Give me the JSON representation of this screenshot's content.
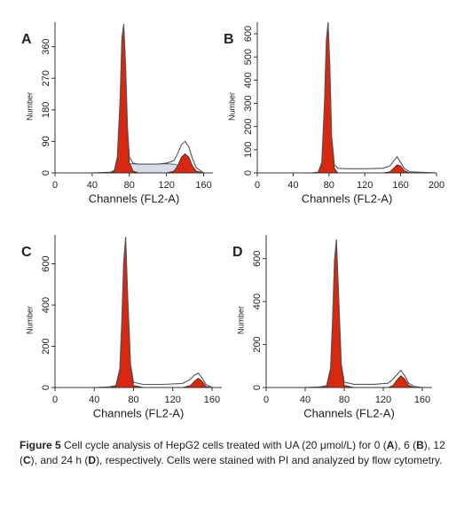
{
  "chart_data": [
    {
      "type": "area",
      "panel": "A",
      "xlabel": "Channels (FL2-A)",
      "ylabel": "Number",
      "xlim": [
        0,
        170
      ],
      "ylim": [
        0,
        430
      ],
      "xticks": [
        0,
        40,
        80,
        120,
        160
      ],
      "yticks": [
        0,
        90,
        180,
        270,
        360
      ],
      "x": [
        0,
        40,
        60,
        64,
        67,
        70,
        72,
        74,
        76,
        78,
        80,
        84,
        90,
        100,
        110,
        120,
        128,
        132,
        136,
        140,
        144,
        148,
        152,
        160
      ],
      "series": [
        {
          "style": "area",
          "color": "#d9dce8",
          "values": [
            0,
            0,
            0,
            0,
            5,
            10,
            15,
            20,
            22,
            24,
            25,
            26,
            25,
            25,
            25,
            26,
            25,
            22,
            18,
            15,
            10,
            5,
            0,
            0
          ]
        },
        {
          "style": "area",
          "color": "#d8280f",
          "values": [
            0,
            0,
            0,
            5,
            40,
            200,
            380,
            420,
            300,
            120,
            30,
            5,
            0,
            0,
            0,
            0,
            5,
            20,
            45,
            55,
            45,
            20,
            5,
            0
          ]
        },
        {
          "style": "line",
          "color": "#555555",
          "values": [
            0,
            0,
            2,
            8,
            45,
            205,
            385,
            425,
            305,
            130,
            45,
            28,
            25,
            25,
            25,
            28,
            35,
            55,
            80,
            90,
            75,
            40,
            15,
            0
          ]
        }
      ]
    },
    {
      "type": "area",
      "panel": "B",
      "xlabel": "Channels (FL2-A)",
      "ylabel": "Number",
      "xlim": [
        0,
        200
      ],
      "ylim": [
        0,
        650
      ],
      "xticks": [
        0,
        40,
        80,
        120,
        160,
        200
      ],
      "yticks": [
        0,
        100,
        200,
        300,
        400,
        500,
        600
      ],
      "x": [
        0,
        40,
        60,
        68,
        72,
        75,
        77,
        79,
        81,
        83,
        86,
        90,
        100,
        120,
        140,
        148,
        152,
        156,
        160,
        164,
        170,
        200
      ],
      "series": [
        {
          "style": "area",
          "color": "#d8280f",
          "values": [
            0,
            0,
            0,
            2,
            40,
            300,
            560,
            640,
            450,
            150,
            20,
            0,
            0,
            0,
            0,
            5,
            20,
            35,
            30,
            10,
            0,
            0
          ]
        },
        {
          "style": "line",
          "color": "#555555",
          "values": [
            0,
            0,
            0,
            4,
            45,
            310,
            570,
            650,
            460,
            160,
            35,
            20,
            18,
            18,
            20,
            30,
            50,
            70,
            45,
            20,
            5,
            0
          ]
        }
      ]
    },
    {
      "type": "area",
      "panel": "C",
      "xlabel": "Channels (FL2-A)",
      "ylabel": "Number",
      "xlim": [
        0,
        170
      ],
      "ylim": [
        0,
        740
      ],
      "xticks": [
        0,
        40,
        80,
        120,
        160
      ],
      "yticks": [
        0,
        200,
        400,
        600
      ],
      "x": [
        0,
        40,
        55,
        62,
        66,
        68,
        70,
        72,
        74,
        77,
        80,
        90,
        110,
        130,
        138,
        142,
        146,
        150,
        154,
        160
      ],
      "series": [
        {
          "style": "area",
          "color": "#d8280f",
          "values": [
            0,
            0,
            0,
            5,
            80,
            300,
            600,
            720,
            450,
            100,
            10,
            0,
            0,
            0,
            10,
            30,
            45,
            30,
            5,
            0
          ]
        },
        {
          "style": "line",
          "color": "#555555",
          "values": [
            0,
            0,
            3,
            10,
            90,
            310,
            610,
            730,
            460,
            110,
            25,
            15,
            15,
            20,
            40,
            60,
            70,
            45,
            15,
            0
          ]
        }
      ]
    },
    {
      "type": "area",
      "panel": "D",
      "xlabel": "Channels (FL2-A)",
      "ylabel": "Number",
      "xlim": [
        0,
        170
      ],
      "ylim": [
        0,
        710
      ],
      "xticks": [
        0,
        40,
        80,
        120,
        160
      ],
      "yticks": [
        0,
        200,
        400,
        600
      ],
      "x": [
        0,
        40,
        55,
        62,
        66,
        68,
        70,
        72,
        74,
        77,
        80,
        90,
        110,
        125,
        130,
        134,
        138,
        142,
        146,
        152,
        160
      ],
      "series": [
        {
          "style": "area",
          "color": "#d8280f",
          "values": [
            0,
            0,
            0,
            5,
            80,
            300,
            580,
            680,
            450,
            100,
            10,
            0,
            0,
            0,
            10,
            35,
            55,
            40,
            10,
            0,
            0
          ]
        },
        {
          "style": "line",
          "color": "#555555",
          "values": [
            0,
            0,
            3,
            10,
            90,
            310,
            590,
            690,
            460,
            110,
            25,
            15,
            15,
            20,
            40,
            60,
            80,
            55,
            20,
            5,
            0
          ]
        }
      ]
    }
  ],
  "caption": [
    {
      "text": "Figure 5",
      "bold": true
    },
    {
      "text": " Cell cycle analysis of HepG2 cells treated with UA (20 μmol/L) for 0 ("
    },
    {
      "text": "A",
      "bold": true
    },
    {
      "text": "), 6 ("
    },
    {
      "text": "B",
      "bold": true
    },
    {
      "text": "), 12 ("
    },
    {
      "text": "C",
      "bold": true
    },
    {
      "text": "), and 24 h ("
    },
    {
      "text": "D",
      "bold": true
    },
    {
      "text": "), respectively. Cells were stained with PI and analyzed by flow cytometry."
    }
  ]
}
